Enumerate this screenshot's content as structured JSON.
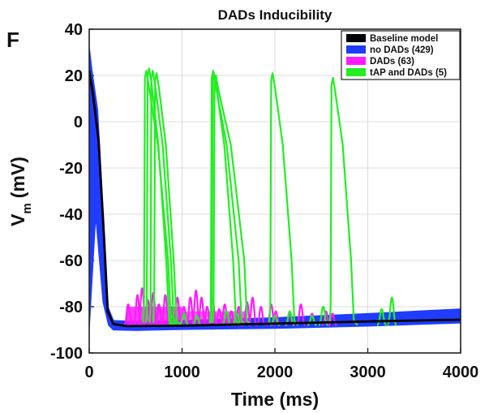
{
  "panel_letter": "F",
  "chart_data": {
    "type": "line",
    "title": "DADs Inducibility",
    "xlabel": "Time (ms)",
    "ylabel_main": "V",
    "ylabel_sub": "m",
    "ylabel_unit": "(mV)",
    "xlim": [
      0,
      4000
    ],
    "ylim": [
      -100,
      40
    ],
    "xticks": [
      0,
      1000,
      2000,
      3000,
      4000
    ],
    "yticks": [
      -100,
      -80,
      -60,
      -40,
      -20,
      0,
      20,
      40
    ],
    "grid": true,
    "legend_position": "top-right",
    "series": [
      {
        "name": "Baseline model",
        "color": "#000000",
        "values": [
          [
            0,
            22
          ],
          [
            40,
            12
          ],
          [
            100,
            -8
          ],
          [
            160,
            -50
          ],
          [
            200,
            -82
          ],
          [
            260,
            -87.5
          ],
          [
            400,
            -88.4
          ],
          [
            1000,
            -88.2
          ],
          [
            2000,
            -87.3
          ],
          [
            3000,
            -86.4
          ],
          [
            4000,
            -85.6
          ]
        ]
      },
      {
        "name": "no DADs (429)",
        "color": "#1f3cff",
        "upper": [
          [
            0,
            32
          ],
          [
            30,
            22
          ],
          [
            90,
            5
          ],
          [
            150,
            -40
          ],
          [
            200,
            -80
          ],
          [
            260,
            -86
          ],
          [
            500,
            -86.5
          ],
          [
            1000,
            -86
          ],
          [
            2000,
            -84.8
          ],
          [
            3000,
            -83
          ],
          [
            4000,
            -81
          ]
        ],
        "lower": [
          [
            0,
            -89
          ],
          [
            70,
            -40
          ],
          [
            150,
            -78
          ],
          [
            210,
            -88
          ],
          [
            260,
            -90
          ],
          [
            500,
            -90.2
          ],
          [
            1000,
            -89.8
          ],
          [
            2000,
            -89.3
          ],
          [
            3000,
            -88.3
          ],
          [
            4000,
            -87
          ]
        ]
      },
      {
        "name": "DADs (63)",
        "color": "#ff1aff",
        "bumps": [
          [
            420,
            -79
          ],
          [
            520,
            -75
          ],
          [
            570,
            -72
          ],
          [
            630,
            -77
          ],
          [
            690,
            -74
          ],
          [
            750,
            -79
          ],
          [
            820,
            -75
          ],
          [
            880,
            -80
          ],
          [
            950,
            -76
          ],
          [
            1020,
            -80
          ],
          [
            1090,
            -76
          ],
          [
            1150,
            -73
          ],
          [
            1210,
            -76
          ],
          [
            1270,
            -80
          ],
          [
            1330,
            -77
          ],
          [
            1400,
            -81
          ],
          [
            1460,
            -79
          ],
          [
            1530,
            -82
          ],
          [
            1610,
            -80
          ],
          [
            1700,
            -78
          ],
          [
            1760,
            -76
          ],
          [
            1850,
            -80
          ],
          [
            1960,
            -79
          ],
          [
            2010,
            -82
          ],
          [
            2160,
            -83
          ],
          [
            2280,
            -79
          ],
          [
            2400,
            -83
          ],
          [
            2550,
            -82
          ],
          [
            2620,
            -83
          ]
        ]
      },
      {
        "name": "tAP and DADs (5)",
        "color": "#22ee22",
        "spikes": [
          [
            600,
            22,
            880
          ],
          [
            630,
            23,
            860
          ],
          [
            670,
            22,
            910
          ],
          [
            710,
            21,
            940
          ],
          [
            1320,
            22,
            1640
          ],
          [
            1330,
            21,
            1580
          ],
          [
            1350,
            20,
            1700
          ],
          [
            1960,
            21,
            2210
          ],
          [
            2610,
            19,
            2850
          ]
        ],
        "bumps": [
          [
            900,
            -84
          ],
          [
            1020,
            -83
          ],
          [
            1160,
            -84
          ],
          [
            1480,
            -82
          ],
          [
            1590,
            -83
          ],
          [
            2000,
            -84
          ],
          [
            2160,
            -82
          ],
          [
            2400,
            -84
          ],
          [
            2520,
            -80
          ],
          [
            3150,
            -81
          ],
          [
            3260,
            -76
          ]
        ]
      }
    ],
    "legend": [
      {
        "label": "Baseline model",
        "color": "#000000"
      },
      {
        "label": "no DADs (429)",
        "color": "#1f3cff"
      },
      {
        "label": "DADs (63)",
        "color": "#ff1aff"
      },
      {
        "label": "tAP and DADs (5)",
        "color": "#22ee22"
      }
    ]
  }
}
